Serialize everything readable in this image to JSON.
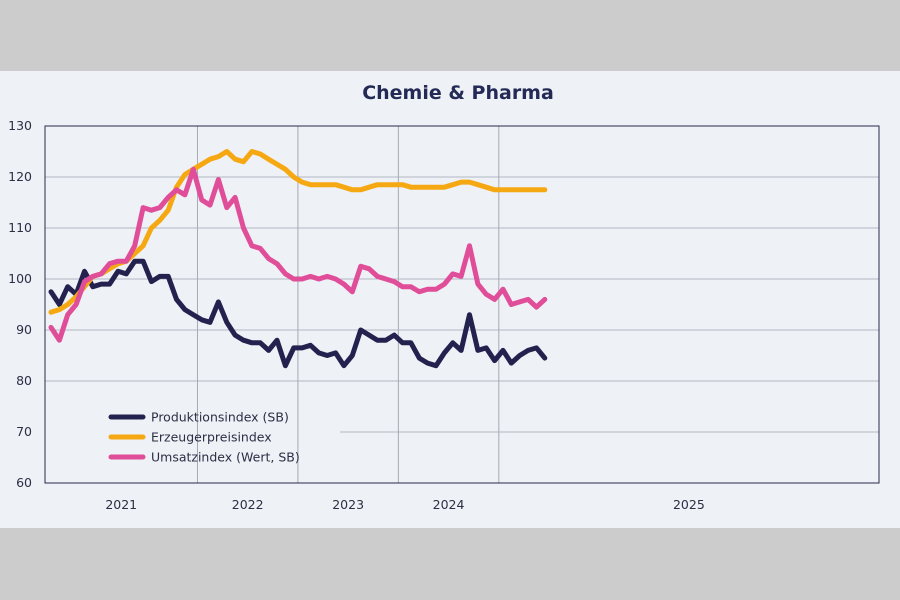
{
  "chart_data": {
    "type": "line",
    "title": "Chemie & Pharma",
    "xlabel": "",
    "ylabel": "",
    "ylim": [
      60,
      130
    ],
    "yticks": [
      60,
      70,
      80,
      90,
      100,
      110,
      120,
      130
    ],
    "x_start": "2020-07",
    "x_end": "2025-06",
    "year_labels": [
      "2021",
      "2022",
      "2023",
      "2024",
      "2025"
    ],
    "grid": true,
    "legend_position": "bottom-left",
    "series": [
      {
        "name": "Produktionsindex (SB)",
        "color": "#23224f",
        "values": [
          97.5,
          95,
          98.5,
          97,
          101.5,
          98.5,
          99,
          99,
          101.5,
          101,
          103.5,
          103.5,
          99.5,
          100.5,
          100.5,
          96,
          94,
          93,
          92,
          91.5,
          95.5,
          91.5,
          89,
          88,
          87.5,
          87.5,
          86,
          88,
          83,
          86.5,
          86.5,
          87,
          85.5,
          85,
          85.5,
          83,
          85,
          90,
          89,
          88,
          88,
          89,
          87.5,
          87.5,
          84.5,
          83.5,
          83,
          85.5,
          87.5,
          86,
          93,
          86,
          86.5,
          84,
          86,
          83.5,
          85,
          86,
          86.5,
          84.5
        ]
      },
      {
        "name": "Erzeugerpreisindex",
        "color": "#f5a812",
        "values": [
          93.5,
          94,
          95,
          96.5,
          98.5,
          100.5,
          101,
          102,
          103,
          103.5,
          105,
          106.5,
          110,
          111.5,
          113.5,
          118,
          120.5,
          121.5,
          122.5,
          123.5,
          124,
          125,
          123.5,
          123,
          125,
          124.5,
          123.5,
          122.5,
          121.5,
          120,
          119,
          118.5,
          118.5,
          118.5,
          118.5,
          118,
          117.5,
          117.5,
          118,
          118.5,
          118.5,
          118.5,
          118.5,
          118,
          118,
          118,
          118,
          118,
          118.5,
          119,
          119,
          118.5,
          118,
          117.5,
          117.5,
          117.5,
          117.5,
          117.5,
          117.5,
          117.5
        ]
      },
      {
        "name": "Umsatzindex (Wert, SB)",
        "color": "#e04d99",
        "values": [
          90.5,
          88,
          93,
          95,
          99.5,
          100.5,
          101,
          103,
          103.5,
          103.5,
          106.5,
          114,
          113.5,
          114,
          116,
          117.5,
          116.5,
          121.5,
          115.5,
          114.5,
          119.5,
          114,
          116,
          110,
          106.5,
          106,
          104,
          103,
          101,
          100,
          100,
          100.5,
          100,
          100.5,
          100,
          99,
          97.5,
          102.5,
          102,
          100.5,
          100,
          99.5,
          98.5,
          98.5,
          97.5,
          98,
          98,
          99,
          101,
          100.5,
          106.5,
          99,
          97,
          96,
          98,
          95,
          95.5,
          96,
          94.5,
          96
        ]
      }
    ]
  }
}
